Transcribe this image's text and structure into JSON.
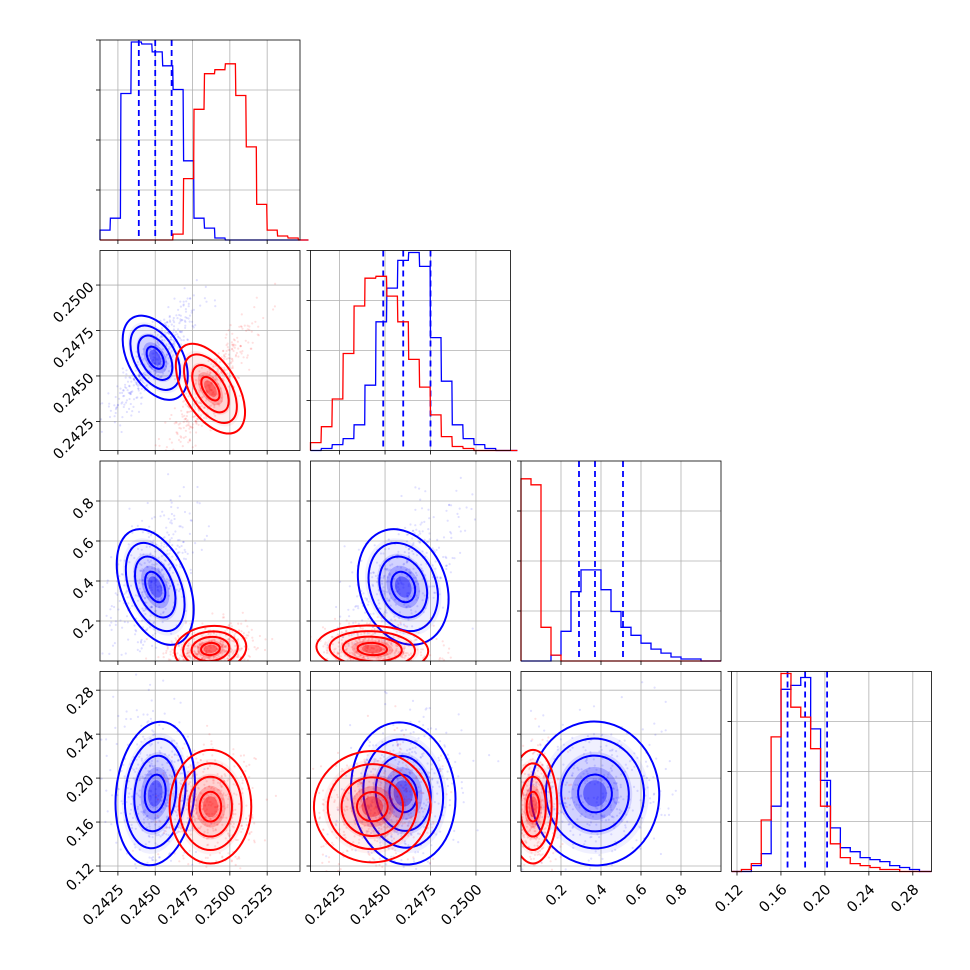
{
  "chart_data": {
    "type": "corner",
    "title": "",
    "grid": true,
    "colors": {
      "blue": "#0000ff",
      "red": "#ff0000"
    },
    "parameters": [
      {
        "index": 0,
        "range": [
          0.2413,
          0.2547
        ],
        "tick_values": [
          0.2425,
          0.245,
          0.2475,
          0.25,
          0.2525
        ],
        "tick_labels": [
          "0.2425",
          "0.2450",
          "0.2475",
          "0.2500",
          "0.2525"
        ]
      },
      {
        "index": 1,
        "range": [
          0.2409,
          0.2519
        ],
        "tick_values": [
          0.2425,
          0.245,
          0.2475,
          0.25
        ],
        "tick_labels": [
          "0.2425",
          "0.2450",
          "0.2475",
          "0.2500"
        ]
      },
      {
        "index": 2,
        "range": [
          0.0,
          1.0
        ],
        "tick_values": [
          0.2,
          0.4,
          0.6,
          0.8
        ],
        "tick_labels": [
          "0.2",
          "0.4",
          "0.6",
          "0.8"
        ]
      },
      {
        "index": 3,
        "range": [
          0.115,
          0.297
        ],
        "tick_values": [
          0.12,
          0.16,
          0.2,
          0.24,
          0.28
        ],
        "tick_labels": [
          "0.12",
          "0.16",
          "0.20",
          "0.24",
          "0.28"
        ]
      }
    ],
    "series": [
      {
        "color": "blue",
        "quantiles": [
          [
            0.2439,
            0.245,
            0.2461
          ],
          [
            0.2449,
            0.246,
            0.2475
          ],
          [
            0.29,
            0.37,
            0.51
          ],
          [
            0.166,
            0.182,
            0.202
          ]
        ],
        "hist": [
          {
            "x": [
              0.2413,
              0.242,
              0.2427,
              0.2434,
              0.2441,
              0.2448,
              0.2455,
              0.2462,
              0.2469,
              0.2476,
              0.2483,
              0.249,
              0.2497,
              0.2504,
              0.2511,
              0.2518,
              0.2525,
              0.2532,
              0.2539,
              0.2546
            ],
            "y": [
              0.05,
              0.11,
              0.74,
              1.0,
              0.99,
              0.95,
              0.88,
              0.76,
              0.4,
              0.11,
              0.06,
              0.01,
              0,
              0,
              0,
              0,
              0,
              0,
              0,
              0
            ]
          },
          {
            "x": [
              0.2409,
              0.2415,
              0.2421,
              0.2427,
              0.2433,
              0.2439,
              0.2445,
              0.2451,
              0.2457,
              0.2463,
              0.2469,
              0.2475,
              0.2481,
              0.2487,
              0.2493,
              0.2499,
              0.2505,
              0.2511,
              0.2517
            ],
            "y": [
              0,
              0.01,
              0.03,
              0.06,
              0.13,
              0.33,
              0.65,
              0.82,
              0.96,
              1.0,
              0.93,
              0.57,
              0.35,
              0.13,
              0.06,
              0.03,
              0.01,
              0,
              0
            ]
          },
          {
            "x": [
              0.0,
              0.05,
              0.1,
              0.15,
              0.2,
              0.25,
              0.3,
              0.35,
              0.4,
              0.45,
              0.5,
              0.55,
              0.6,
              0.65,
              0.7,
              0.75,
              0.8,
              0.85,
              0.9,
              0.95
            ],
            "y": [
              0,
              0,
              0,
              0.03,
              0.15,
              0.35,
              0.46,
              0.46,
              0.36,
              0.25,
              0.17,
              0.13,
              0.09,
              0.06,
              0.04,
              0.02,
              0.01,
              0.01,
              0,
              0
            ]
          },
          {
            "x": [
              0.115,
              0.124,
              0.133,
              0.142,
              0.151,
              0.16,
              0.169,
              0.178,
              0.187,
              0.196,
              0.205,
              0.214,
              0.223,
              0.232,
              0.241,
              0.25,
              0.259,
              0.268,
              0.277,
              0.286
            ],
            "y": [
              0,
              0,
              0.03,
              0.09,
              0.33,
              0.92,
              0.94,
              0.98,
              0.72,
              0.46,
              0.22,
              0.12,
              0.1,
              0.07,
              0.06,
              0.05,
              0.03,
              0.02,
              0.01,
              0
            ]
          }
        ],
        "scatter_center": [
          0.245,
          0.246,
          0.37,
          0.186
        ]
      },
      {
        "color": "red",
        "hist": [
          {
            "x": [
              0.2413,
              0.242,
              0.2427,
              0.2434,
              0.2441,
              0.2448,
              0.2455,
              0.2462,
              0.2469,
              0.2476,
              0.2483,
              0.249,
              0.2497,
              0.2504,
              0.2511,
              0.2518,
              0.2525,
              0.2532,
              0.2539,
              0.2546
            ],
            "y": [
              0,
              0,
              0,
              0,
              0,
              0,
              0,
              0.03,
              0.31,
              0.66,
              0.84,
              0.86,
              0.89,
              0.73,
              0.47,
              0.18,
              0.05,
              0.02,
              0.01,
              0
            ]
          },
          {
            "x": [
              0.2409,
              0.2415,
              0.2421,
              0.2427,
              0.2433,
              0.2439,
              0.2445,
              0.2451,
              0.2457,
              0.2463,
              0.2469,
              0.2475,
              0.2481,
              0.2487,
              0.2493,
              0.2499,
              0.2505,
              0.2511,
              0.2517
            ],
            "y": [
              0.04,
              0.12,
              0.26,
              0.49,
              0.73,
              0.87,
              0.88,
              0.78,
              0.65,
              0.46,
              0.32,
              0.18,
              0.07,
              0.02,
              0.01,
              0,
              0,
              0,
              0
            ]
          },
          {
            "x": [
              0.0,
              0.05,
              0.1,
              0.15,
              0.2,
              0.25,
              0.3,
              0.35,
              0.4,
              0.45,
              0.5,
              0.55,
              0.6,
              0.65,
              0.7,
              0.75,
              0.8,
              0.85,
              0.9,
              0.95
            ],
            "y": [
              0.92,
              0.89,
              0.17,
              0.03,
              0,
              0,
              0,
              0,
              0,
              0,
              0,
              0,
              0,
              0,
              0,
              0,
              0,
              0,
              0,
              0
            ]
          },
          {
            "x": [
              0.115,
              0.124,
              0.133,
              0.142,
              0.151,
              0.16,
              0.169,
              0.178,
              0.187,
              0.196,
              0.205,
              0.214,
              0.223,
              0.232,
              0.241,
              0.25,
              0.259,
              0.268,
              0.277,
              0.286
            ],
            "y": [
              0,
              0.01,
              0.04,
              0.26,
              0.68,
              1.0,
              0.83,
              0.78,
              0.62,
              0.33,
              0.14,
              0.07,
              0.04,
              0.03,
              0.02,
              0.01,
              0.01,
              0,
              0,
              0
            ]
          }
        ],
        "scatter_center": [
          0.2487,
          0.2443,
          0.06,
          0.174
        ]
      }
    ],
    "axis_labels": {
      "y_panel_rows": [
        {
          "row": 1,
          "labels": [
            "0.2425",
            "0.2450",
            "0.2475",
            "0.2500"
          ]
        },
        {
          "row": 2,
          "labels": [
            "0.2",
            "0.4",
            "0.6",
            "0.8"
          ]
        },
        {
          "row": 3,
          "labels": [
            "0.12",
            "0.16",
            "0.20",
            "0.24",
            "0.28"
          ]
        }
      ],
      "x_bottom_cols": [
        {
          "col": 0,
          "labels": [
            "0.2425",
            "0.2450",
            "0.2475",
            "0.2500",
            "0.2525"
          ]
        },
        {
          "col": 1,
          "labels": [
            "0.2425",
            "0.2450",
            "0.2475",
            "0.2500"
          ]
        },
        {
          "col": 2,
          "labels": [
            "0.2",
            "0.4",
            "0.6",
            "0.8"
          ]
        },
        {
          "col": 3,
          "labels": [
            "0.12",
            "0.16",
            "0.20",
            "0.24",
            "0.28"
          ]
        }
      ]
    }
  }
}
